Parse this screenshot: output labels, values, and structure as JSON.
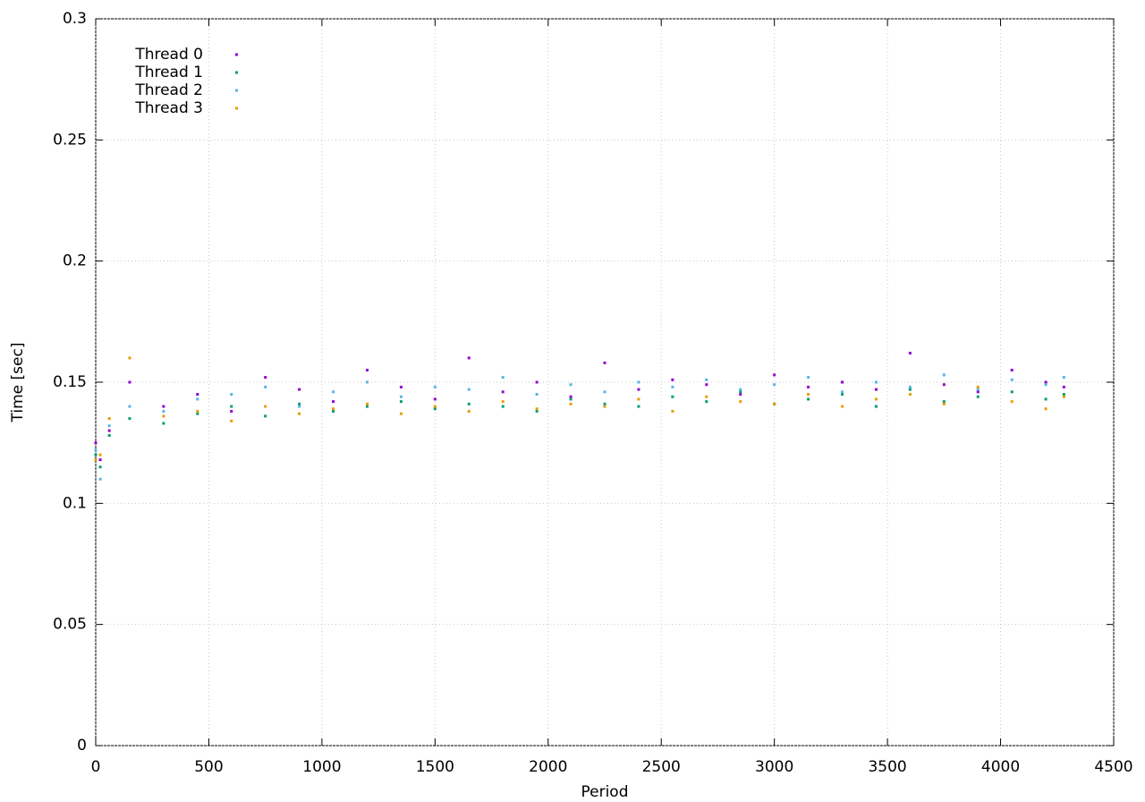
{
  "chart_data": {
    "type": "scatter",
    "xlabel": "Period",
    "ylabel": "Time [sec]",
    "x": [
      0,
      20,
      60,
      150,
      300,
      450,
      600,
      750,
      900,
      1050,
      1200,
      1350,
      1500,
      1650,
      1800,
      1950,
      2100,
      2250,
      2400,
      2550,
      2700,
      2850,
      3000,
      3150,
      3300,
      3450,
      3600,
      3750,
      3900,
      4050,
      4200,
      4280
    ],
    "series": [
      {
        "name": "Thread 0",
        "color": "#9400d3",
        "values": [
          0.125,
          0.118,
          0.13,
          0.15,
          0.14,
          0.145,
          0.138,
          0.152,
          0.147,
          0.142,
          0.155,
          0.148,
          0.143,
          0.16,
          0.146,
          0.15,
          0.144,
          0.158,
          0.147,
          0.151,
          0.149,
          0.145,
          0.153,
          0.148,
          0.15,
          0.147,
          0.162,
          0.149,
          0.146,
          0.155,
          0.15,
          0.148
        ]
      },
      {
        "name": "Thread 1",
        "color": "#009e73",
        "values": [
          0.12,
          0.115,
          0.128,
          0.135,
          0.133,
          0.137,
          0.14,
          0.136,
          0.141,
          0.138,
          0.14,
          0.142,
          0.139,
          0.141,
          0.14,
          0.138,
          0.143,
          0.141,
          0.14,
          0.144,
          0.142,
          0.146,
          0.141,
          0.143,
          0.145,
          0.14,
          0.147,
          0.142,
          0.144,
          0.146,
          0.143,
          0.145
        ]
      },
      {
        "name": "Thread 2",
        "color": "#56b4e9",
        "values": [
          0.122,
          0.11,
          0.132,
          0.14,
          0.138,
          0.143,
          0.145,
          0.148,
          0.14,
          0.146,
          0.15,
          0.144,
          0.148,
          0.147,
          0.152,
          0.145,
          0.149,
          0.146,
          0.15,
          0.148,
          0.151,
          0.147,
          0.149,
          0.152,
          0.146,
          0.15,
          0.148,
          0.153,
          0.147,
          0.151,
          0.149,
          0.152
        ]
      },
      {
        "name": "Thread 3",
        "color": "#e69f00",
        "values": [
          0.118,
          0.12,
          0.135,
          0.16,
          0.136,
          0.138,
          0.134,
          0.14,
          0.137,
          0.139,
          0.141,
          0.137,
          0.14,
          0.138,
          0.142,
          0.139,
          0.141,
          0.14,
          0.143,
          0.138,
          0.144,
          0.142,
          0.141,
          0.145,
          0.14,
          0.143,
          0.145,
          0.141,
          0.148,
          0.142,
          0.139,
          0.144
        ]
      }
    ],
    "xlim": [
      0,
      4500
    ],
    "xticks": [
      0,
      500,
      1000,
      1500,
      2000,
      2500,
      3000,
      3500,
      4000,
      4500
    ],
    "ylim": [
      0,
      0.3
    ],
    "yticks": [
      0,
      0.05,
      0.1,
      0.15,
      0.2,
      0.25,
      0.3
    ],
    "grid": true,
    "legend": "top-left"
  }
}
